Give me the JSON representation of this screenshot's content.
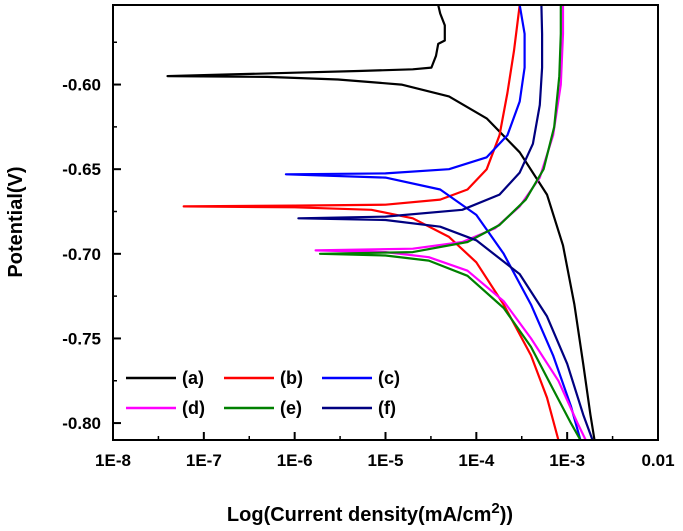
{
  "chart_data": {
    "type": "line",
    "xlabel": "Log(Current density(mA/cm",
    "xlabel_sup": "2",
    "xlabel_end": "))",
    "ylabel": "Potential(V)",
    "x_scale": "log",
    "xlim": [
      1e-08,
      0.01
    ],
    "ylim": [
      -0.81,
      -0.553
    ],
    "x_ticks": [
      {
        "value": 1e-08,
        "label": "1E-8"
      },
      {
        "value": 1e-07,
        "label": "1E-7"
      },
      {
        "value": 1e-06,
        "label": "1E-6"
      },
      {
        "value": 1e-05,
        "label": "1E-5"
      },
      {
        "value": 0.0001,
        "label": "1E-4"
      },
      {
        "value": 0.001,
        "label": "1E-3"
      },
      {
        "value": 0.01,
        "label": "0.01"
      }
    ],
    "y_ticks": [
      {
        "value": -0.6,
        "label": "-0.60"
      },
      {
        "value": -0.65,
        "label": "-0.65"
      },
      {
        "value": -0.7,
        "label": "-0.70"
      },
      {
        "value": -0.75,
        "label": "-0.75"
      },
      {
        "value": -0.8,
        "label": "-0.80"
      }
    ],
    "legend_position": "bottom-left",
    "grid": false,
    "series": [
      {
        "name": "(a)",
        "color": "#000000",
        "ecorr": -0.595,
        "icorr": 3.98e-08,
        "upper": [
          [
            3.98e-08,
            -0.595
          ],
          [
            2e-07,
            -0.594
          ],
          [
            1e-06,
            -0.593
          ],
          [
            5e-06,
            -0.592
          ],
          [
            2e-05,
            -0.591
          ],
          [
            3.2e-05,
            -0.59
          ],
          [
            3.6e-05,
            -0.583
          ],
          [
            3.8e-05,
            -0.576
          ],
          [
            4.5e-05,
            -0.574
          ],
          [
            4.5e-05,
            -0.565
          ],
          [
            4e-05,
            -0.558
          ],
          [
            3.8e-05,
            -0.553
          ]
        ],
        "lower": [
          [
            3.98e-08,
            -0.595
          ],
          [
            5e-07,
            -0.5955
          ],
          [
            3e-06,
            -0.597
          ],
          [
            1.5e-05,
            -0.6
          ],
          [
            5e-05,
            -0.607
          ],
          [
            0.00013,
            -0.62
          ],
          [
            0.0003,
            -0.64
          ],
          [
            0.0006,
            -0.665
          ],
          [
            0.0009,
            -0.695
          ],
          [
            0.0012,
            -0.73
          ],
          [
            0.0015,
            -0.765
          ],
          [
            0.0018,
            -0.795
          ],
          [
            0.002,
            -0.81
          ]
        ]
      },
      {
        "name": "(b)",
        "color": "#ff0000",
        "ecorr": -0.672,
        "icorr": 6e-08,
        "upper": [
          [
            6e-08,
            -0.672
          ],
          [
            1e-06,
            -0.6715
          ],
          [
            1e-05,
            -0.671
          ],
          [
            4e-05,
            -0.668
          ],
          [
            8e-05,
            -0.662
          ],
          [
            0.00013,
            -0.65
          ],
          [
            0.00018,
            -0.63
          ],
          [
            0.00022,
            -0.605
          ],
          [
            0.00026,
            -0.58
          ],
          [
            0.0003,
            -0.553
          ]
        ],
        "lower": [
          [
            6e-08,
            -0.672
          ],
          [
            1e-06,
            -0.6725
          ],
          [
            7e-06,
            -0.674
          ],
          [
            2e-05,
            -0.679
          ],
          [
            5e-05,
            -0.69
          ],
          [
            0.0001,
            -0.705
          ],
          [
            0.0002,
            -0.73
          ],
          [
            0.0004,
            -0.76
          ],
          [
            0.0006,
            -0.785
          ],
          [
            0.0008,
            -0.81
          ]
        ]
      },
      {
        "name": "(c)",
        "color": "#0000ff",
        "ecorr": -0.653,
        "icorr": 8e-07,
        "upper": [
          [
            8e-07,
            -0.653
          ],
          [
            1e-05,
            -0.6525
          ],
          [
            5e-05,
            -0.65
          ],
          [
            0.00013,
            -0.643
          ],
          [
            0.00022,
            -0.63
          ],
          [
            0.0003,
            -0.61
          ],
          [
            0.00034,
            -0.59
          ],
          [
            0.00034,
            -0.57
          ],
          [
            0.0003,
            -0.553
          ]
        ],
        "lower": [
          [
            8e-07,
            -0.653
          ],
          [
            1e-05,
            -0.655
          ],
          [
            4e-05,
            -0.662
          ],
          [
            0.0001,
            -0.677
          ],
          [
            0.0002,
            -0.7
          ],
          [
            0.0004,
            -0.73
          ],
          [
            0.0007,
            -0.76
          ],
          [
            0.0011,
            -0.79
          ],
          [
            0.0014,
            -0.81
          ]
        ]
      },
      {
        "name": "(d)",
        "color": "#ff00ff",
        "ecorr": -0.698,
        "icorr": 1.7e-06,
        "upper": [
          [
            1.7e-06,
            -0.698
          ],
          [
            2e-05,
            -0.697
          ],
          [
            7e-05,
            -0.693
          ],
          [
            0.00016,
            -0.685
          ],
          [
            0.0003,
            -0.672
          ],
          [
            0.0005,
            -0.655
          ],
          [
            0.0007,
            -0.63
          ],
          [
            0.00085,
            -0.6
          ],
          [
            0.0009,
            -0.57
          ],
          [
            0.0009,
            -0.553
          ]
        ],
        "lower": [
          [
            1.7e-06,
            -0.698
          ],
          [
            1e-05,
            -0.699
          ],
          [
            3e-05,
            -0.702
          ],
          [
            8e-05,
            -0.71
          ],
          [
            0.0002,
            -0.728
          ],
          [
            0.0004,
            -0.75
          ],
          [
            0.0008,
            -0.775
          ],
          [
            0.0013,
            -0.8
          ],
          [
            0.0016,
            -0.81
          ]
        ]
      },
      {
        "name": "(e)",
        "color": "#008000",
        "ecorr": -0.7,
        "icorr": 1.9e-06,
        "upper": [
          [
            1.9e-06,
            -0.7
          ],
          [
            2e-05,
            -0.699
          ],
          [
            8e-05,
            -0.693
          ],
          [
            0.00018,
            -0.683
          ],
          [
            0.00035,
            -0.668
          ],
          [
            0.00055,
            -0.65
          ],
          [
            0.00072,
            -0.625
          ],
          [
            0.00082,
            -0.595
          ],
          [
            0.00085,
            -0.57
          ],
          [
            0.00085,
            -0.553
          ]
        ],
        "lower": [
          [
            1.9e-06,
            -0.7
          ],
          [
            1e-05,
            -0.701
          ],
          [
            3e-05,
            -0.704
          ],
          [
            8e-05,
            -0.713
          ],
          [
            0.0002,
            -0.732
          ],
          [
            0.0004,
            -0.755
          ],
          [
            0.0007,
            -0.78
          ],
          [
            0.0011,
            -0.8
          ],
          [
            0.0014,
            -0.81
          ]
        ]
      },
      {
        "name": "(f)",
        "color": "#000080",
        "ecorr": -0.679,
        "icorr": 1.1e-06,
        "upper": [
          [
            1.1e-06,
            -0.679
          ],
          [
            1e-05,
            -0.678
          ],
          [
            7e-05,
            -0.674
          ],
          [
            0.00018,
            -0.665
          ],
          [
            0.0003,
            -0.652
          ],
          [
            0.00042,
            -0.635
          ],
          [
            0.0005,
            -0.612
          ],
          [
            0.00053,
            -0.59
          ],
          [
            0.00053,
            -0.57
          ],
          [
            0.00052,
            -0.553
          ]
        ],
        "lower": [
          [
            1.1e-06,
            -0.679
          ],
          [
            1e-05,
            -0.68
          ],
          [
            4e-05,
            -0.684
          ],
          [
            0.0001,
            -0.692
          ],
          [
            0.0003,
            -0.712
          ],
          [
            0.0006,
            -0.737
          ],
          [
            0.001,
            -0.765
          ],
          [
            0.0015,
            -0.795
          ],
          [
            0.0019,
            -0.81
          ]
        ]
      }
    ]
  }
}
